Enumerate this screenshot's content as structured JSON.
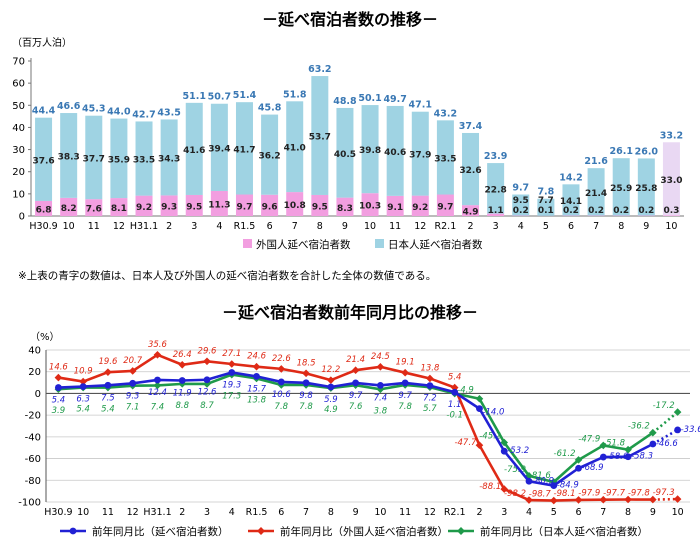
{
  "top": {
    "title": "－延べ宿泊者数の推移－",
    "unit": "（百万人泊）",
    "note": "※上表の青字の数値は、日本人及び外国人の延べ宿泊者数を合計した全体の数値である。"
  },
  "bottom": {
    "title": "－延べ宿泊者数前年同月比の推移－",
    "unit": "（%）"
  },
  "colors": {
    "japanese": "#9fd3e3",
    "japanese_latest": "#e9d8f3",
    "foreign": "#f29ee0",
    "total_label": "#3a78b4",
    "total_line": "#2121d4",
    "foreign_line": "#df2a16",
    "japanese_line": "#1f9a4a"
  },
  "chart_data": [
    {
      "type": "bar",
      "stacked": true,
      "title": "－延べ宿泊者数の推移－",
      "ylabel": "（百万人泊）",
      "ylim": [
        0,
        70
      ],
      "yticks": [
        0,
        10,
        20,
        30,
        40,
        50,
        60,
        70
      ],
      "grid": false,
      "legend": "bottom",
      "categories": [
        "H30.9",
        "10",
        "11",
        "12",
        "H31.1",
        "2",
        "3",
        "4",
        "R1.5",
        "6",
        "7",
        "8",
        "9",
        "10",
        "11",
        "12",
        "R2.1",
        "2",
        "3",
        "4",
        "5",
        "6",
        "7",
        "8",
        "9",
        "10"
      ],
      "series": [
        {
          "name": "外国人延べ宿泊者数",
          "values": [
            6.8,
            8.2,
            7.6,
            8.1,
            9.2,
            9.3,
            9.5,
            11.3,
            9.7,
            9.6,
            10.8,
            9.5,
            8.3,
            10.3,
            9.1,
            9.2,
            9.7,
            4.9,
            1.1,
            0.2,
            0.1,
            0.2,
            0.2,
            0.2,
            0.2,
            0.3
          ]
        },
        {
          "name": "日本人延べ宿泊者数",
          "values": [
            37.6,
            38.3,
            37.7,
            35.9,
            33.5,
            34.3,
            41.6,
            39.4,
            41.7,
            36.2,
            41.0,
            53.7,
            40.5,
            39.8,
            40.6,
            37.9,
            33.5,
            32.6,
            22.8,
            9.5,
            7.7,
            14.1,
            21.4,
            25.9,
            25.8,
            33.0
          ]
        }
      ],
      "totals": [
        44.4,
        46.6,
        45.3,
        44.0,
        42.7,
        43.5,
        51.1,
        50.7,
        51.4,
        45.8,
        51.8,
        63.2,
        48.8,
        50.1,
        49.7,
        47.1,
        43.2,
        37.4,
        23.9,
        9.7,
        7.8,
        14.2,
        21.6,
        26.1,
        26.0,
        33.2
      ]
    },
    {
      "type": "line",
      "title": "－延べ宿泊者数前年同月比の推移－",
      "ylabel": "（%）",
      "ylim": [
        -100,
        40
      ],
      "yticks": [
        40,
        20,
        0,
        -20,
        -40,
        -60,
        -80,
        -100
      ],
      "grid": true,
      "legend": "bottom",
      "categories": [
        "H30.9",
        "10",
        "11",
        "12",
        "H31.1",
        "2",
        "3",
        "4",
        "R1.5",
        "6",
        "7",
        "8",
        "9",
        "10",
        "11",
        "12",
        "R2.1",
        "2",
        "3",
        "4",
        "5",
        "6",
        "7",
        "8",
        "9",
        "10"
      ],
      "series": [
        {
          "name": "前年同月比（延べ宿泊者数）",
          "values": [
            5.4,
            6.3,
            7.5,
            9.3,
            12.4,
            11.9,
            12.6,
            19.3,
            15.7,
            10.6,
            9.8,
            5.9,
            9.7,
            7.4,
            9.7,
            7.2,
            1.1,
            -14.0,
            -53.2,
            -80.9,
            -84.9,
            -68.9,
            -58.6,
            -58.3,
            -46.6,
            -33.6
          ],
          "labels": [
            "5.4",
            "6.3",
            "7.5",
            "9.3",
            "12.4",
            "11.9",
            "12.6",
            "19.3",
            "15.7",
            "10.6",
            "9.8",
            "5.9",
            "9.7",
            "7.4",
            "9.7",
            "7.2",
            "1.1",
            "-14.0",
            "-53.2",
            "-80.9",
            "-84.9",
            "-68.9",
            "-58.6",
            "-58.3",
            "-46.6",
            "-33.6"
          ]
        },
        {
          "name": "前年同月比（外国人延べ宿泊者数）",
          "values": [
            14.6,
            10.9,
            19.6,
            20.7,
            35.6,
            26.4,
            29.6,
            27.1,
            24.6,
            22.6,
            18.5,
            12.2,
            21.4,
            24.5,
            19.1,
            13.8,
            5.4,
            -47.7,
            -88.1,
            -98.2,
            -98.7,
            -98.1,
            -97.9,
            -97.7,
            -97.8,
            -97.3
          ],
          "labels": [
            "14.6",
            "10.9",
            "19.6",
            "20.7",
            "35.6",
            "26.4",
            "29.6",
            "27.1",
            "24.6",
            "22.6",
            "18.5",
            "12.2",
            "21.4",
            "24.5",
            "19.1",
            "13.8",
            "5.4",
            "-47.7",
            "-88.1",
            "-98.2",
            "-98.7",
            "-98.1",
            "-97.9",
            "-97.7",
            "-97.8",
            "-97.3"
          ]
        },
        {
          "name": "前年同月比（日本人延べ宿泊者数）",
          "values": [
            3.9,
            5.4,
            5.4,
            7.1,
            7.4,
            8.8,
            8.7,
            17.3,
            13.8,
            7.8,
            7.8,
            4.9,
            7.6,
            3.8,
            7.8,
            5.7,
            -0.1,
            -4.9,
            -45.2,
            -75.9,
            -81.6,
            -61.2,
            -47.9,
            -51.8,
            -36.2,
            -17.2
          ],
          "labels": [
            "3.9",
            "5.4",
            "5.4",
            "7.1",
            "7.4",
            "8.8",
            "8.7",
            "17.3",
            "13.8",
            "7.8",
            "7.8",
            "4.9",
            "7.6",
            "3.8",
            "7.8",
            "5.7",
            "-0.1",
            "-4.9",
            "-45.2",
            "-75.9",
            "-81.6",
            "-61.2",
            "-47.9",
            "-51.8",
            "-36.2",
            "-17.2"
          ]
        }
      ]
    }
  ]
}
